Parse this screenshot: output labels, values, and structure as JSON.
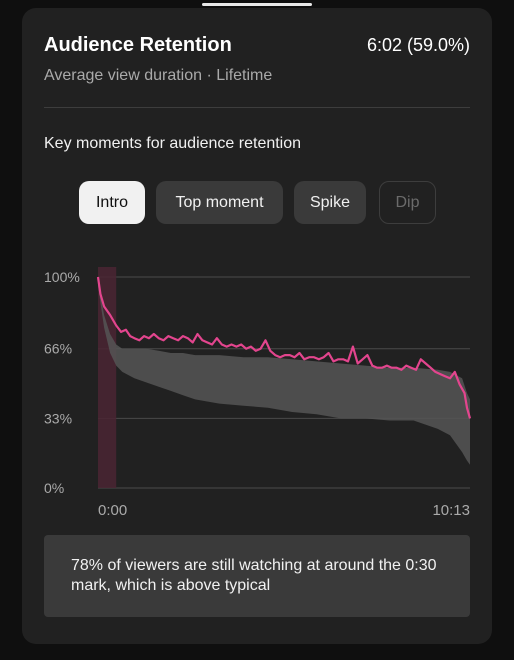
{
  "card": {
    "title": "Audience Retention",
    "headline_value": "6:02 (59.0%)",
    "subtitle": "Average view duration · Lifetime",
    "section_label": "Key moments for audience retention"
  },
  "chips": [
    {
      "label": "Intro",
      "state": "selected"
    },
    {
      "label": "Top moment",
      "state": "normal"
    },
    {
      "label": "Spike",
      "state": "normal"
    },
    {
      "label": "Dip",
      "state": "disabled"
    }
  ],
  "colors": {
    "accent_line": "#e3458e",
    "typical_band": "#555555",
    "highlight_region": "#4a2432"
  },
  "chart_data": {
    "type": "line",
    "y_ticks": [
      "100%",
      "66%",
      "33%",
      "0%"
    ],
    "y_tick_values": [
      100,
      66,
      33,
      0
    ],
    "x_ticks": [
      "0:00",
      "10:13"
    ],
    "x_range_seconds": [
      0,
      613
    ],
    "ylim": [
      0,
      100
    ],
    "highlight_range_seconds": [
      0,
      30
    ],
    "series": [
      {
        "x": [
          0,
          4,
          10,
          20,
          30,
          38,
          46,
          53,
          60,
          68,
          76,
          84,
          92,
          100,
          108,
          116,
          124,
          132,
          140,
          148,
          156,
          164,
          172,
          180,
          188,
          196,
          204,
          212,
          220,
          228,
          236,
          244,
          252,
          260,
          268,
          276,
          284,
          292,
          300,
          308,
          316,
          324,
          332,
          340,
          348,
          356,
          364,
          372,
          380,
          388,
          396,
          404,
          412,
          420,
          428,
          436,
          444,
          452,
          460,
          468,
          476,
          484,
          492,
          500,
          508,
          516,
          524,
          532,
          540,
          548,
          556,
          564,
          572,
          580,
          588,
          596,
          604,
          608,
          613
        ],
        "values": [
          100,
          92,
          86,
          82,
          77,
          74,
          75,
          72,
          71,
          70,
          72,
          71,
          73,
          71,
          70,
          72,
          71,
          70,
          72,
          71,
          69,
          73,
          70,
          69,
          68,
          71,
          68,
          67,
          68,
          67,
          68,
          66,
          67,
          65,
          66,
          70,
          65,
          63,
          62,
          63,
          63,
          62,
          64,
          61,
          62,
          62,
          61,
          62,
          64,
          60,
          61,
          61,
          60,
          67,
          59,
          61,
          63,
          58,
          57,
          57,
          58,
          57,
          57,
          56,
          58,
          57,
          56,
          61,
          59,
          57,
          55,
          54,
          53,
          52,
          55,
          49,
          45,
          38,
          33
        ]
      }
    ],
    "typical_band": {
      "x": [
        0,
        4,
        10,
        20,
        30,
        40,
        60,
        80,
        100,
        120,
        140,
        160,
        180,
        200,
        240,
        280,
        320,
        360,
        400,
        440,
        480,
        520,
        560,
        580,
        600,
        608,
        613
      ],
      "upper": [
        98,
        92,
        82,
        73,
        68,
        66,
        66,
        66,
        65,
        64,
        64,
        63,
        63,
        63,
        62,
        62,
        61,
        60,
        59,
        58,
        57,
        57,
        56,
        55,
        52,
        45,
        42
      ],
      "lower": [
        96,
        88,
        76,
        64,
        58,
        55,
        52,
        50,
        48,
        46,
        44,
        42,
        41,
        40,
        39,
        38,
        36,
        35,
        33,
        33,
        32,
        32,
        28,
        25,
        17,
        13,
        11
      ]
    }
  },
  "note": {
    "text": "78% of viewers are still watching at around the 0:30 mark, which is above typical"
  }
}
